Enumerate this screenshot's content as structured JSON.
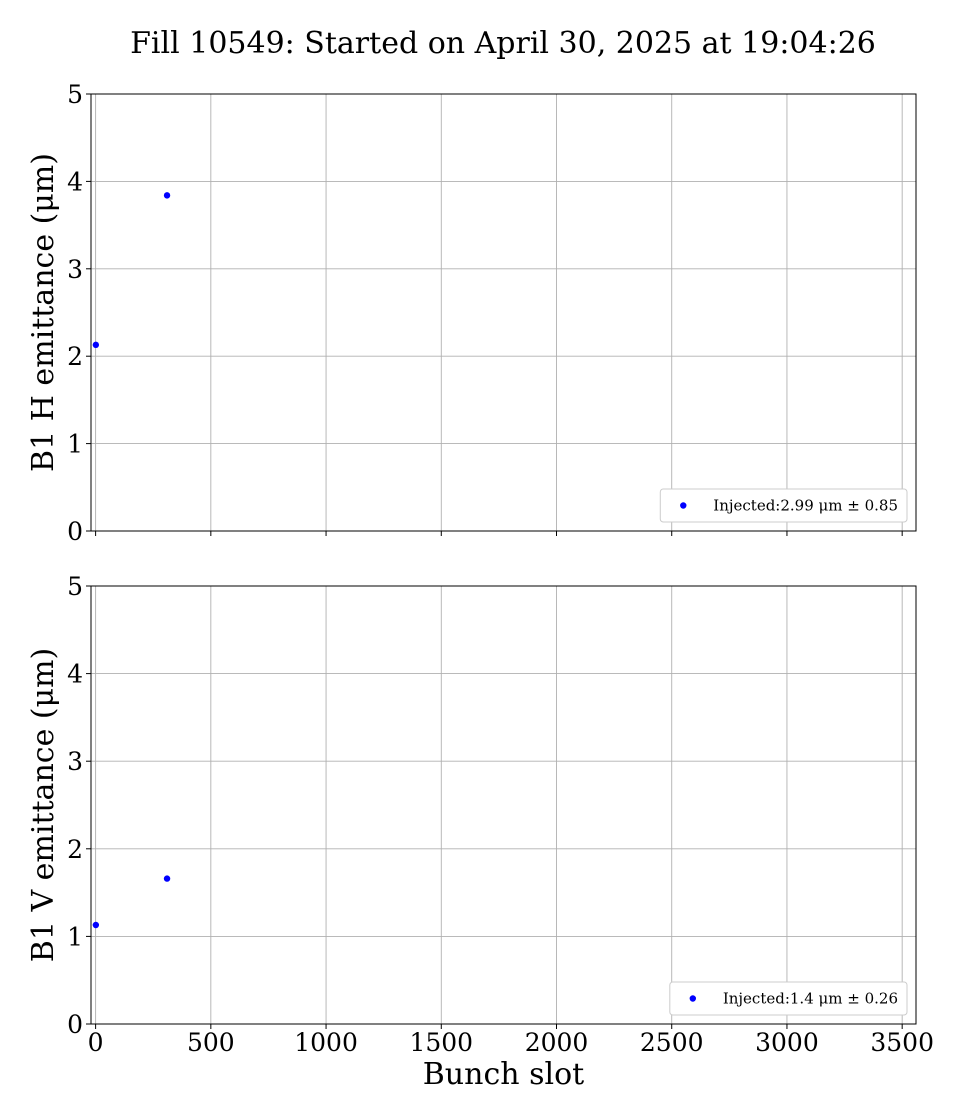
{
  "figure": {
    "title": "Fill 10549: Started on April 30, 2025 at 19:04:26"
  },
  "chart_data": [
    {
      "type": "scatter",
      "ylabel": "B1 H emittance (μm)",
      "xlabel": "",
      "xlim": [
        -20,
        3560
      ],
      "ylim": [
        0,
        5
      ],
      "xticks": [
        0,
        500,
        1000,
        1500,
        2000,
        2500,
        3000,
        3500
      ],
      "yticks": [
        0,
        1,
        2,
        3,
        4,
        5
      ],
      "x_tick_labels_shown": false,
      "grid": true,
      "legend_position": "lower-right",
      "series": [
        {
          "name": "Injected:2.99 μm ± 0.85",
          "color": "#0000ff",
          "points": [
            {
              "x": 1,
              "y": 2.13
            },
            {
              "x": 310,
              "y": 3.84
            }
          ]
        }
      ]
    },
    {
      "type": "scatter",
      "ylabel": "B1 V emittance (μm)",
      "xlabel": "Bunch slot",
      "xlim": [
        -20,
        3560
      ],
      "ylim": [
        0,
        5
      ],
      "xticks": [
        0,
        500,
        1000,
        1500,
        2000,
        2500,
        3000,
        3500
      ],
      "yticks": [
        0,
        1,
        2,
        3,
        4,
        5
      ],
      "x_tick_labels_shown": true,
      "grid": true,
      "legend_position": "lower-right",
      "series": [
        {
          "name": "Injected:1.4 μm ± 0.26",
          "color": "#0000ff",
          "points": [
            {
              "x": 1,
              "y": 1.13
            },
            {
              "x": 310,
              "y": 1.66
            }
          ]
        }
      ]
    }
  ]
}
